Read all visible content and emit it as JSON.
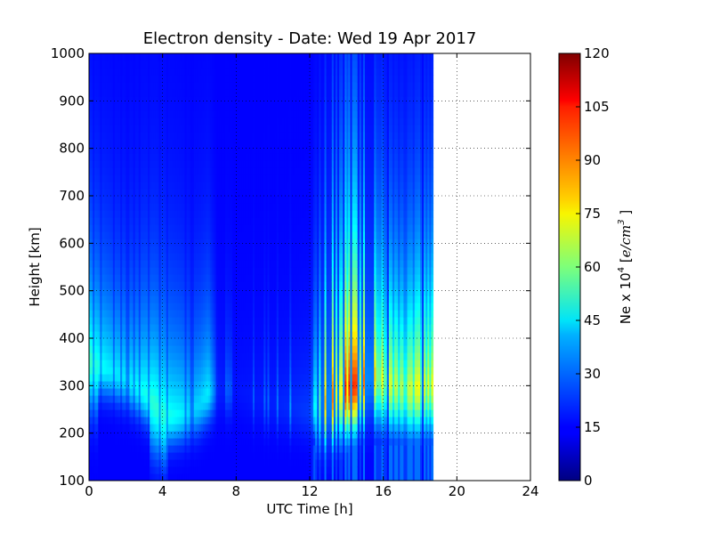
{
  "chart_data": {
    "type": "heatmap",
    "title": "Electron density - Date: Wed 19 Apr 2017",
    "xlabel": "UTC Time [h]",
    "ylabel": "Height [km]",
    "xlim": [
      0,
      24
    ],
    "ylim": [
      100,
      1000
    ],
    "x_ticks": [
      "0",
      "4",
      "8",
      "12",
      "16",
      "20",
      "24"
    ],
    "y_ticks": [
      "100",
      "200",
      "300",
      "400",
      "500",
      "600",
      "700",
      "800",
      "900",
      "1000"
    ],
    "grid": true,
    "data_extent_hours": [
      0,
      18.7
    ],
    "colormap": "jet",
    "colorbar": {
      "label_prefix": "Ne x 10",
      "label_exp": "4",
      "label_unit_open": " [",
      "label_unit": "e/cm",
      "label_unit_exp": "3",
      "label_unit_close": " ]",
      "range": [
        0,
        120
      ],
      "ticks": [
        "0",
        "15",
        "30",
        "45",
        "60",
        "75",
        "90",
        "105",
        "120"
      ]
    },
    "time_profile": [
      {
        "t": 0.0,
        "hmax": 360,
        "peak": 45
      },
      {
        "t": 0.5,
        "hmax": 345,
        "peak": 40
      },
      {
        "t": 1.0,
        "hmax": 340,
        "peak": 35
      },
      {
        "t": 1.5,
        "hmax": 330,
        "peak": 33
      },
      {
        "t": 2.0,
        "hmax": 320,
        "peak": 33
      },
      {
        "t": 2.5,
        "hmax": 305,
        "peak": 35
      },
      {
        "t": 3.0,
        "hmax": 290,
        "peak": 38
      },
      {
        "t": 3.5,
        "hmax": 270,
        "peak": 42
      },
      {
        "t": 4.0,
        "hmax": 245,
        "peak": 42
      },
      {
        "t": 4.5,
        "hmax": 240,
        "peak": 38
      },
      {
        "t": 5.0,
        "hmax": 245,
        "peak": 35
      },
      {
        "t": 5.5,
        "hmax": 250,
        "peak": 30
      },
      {
        "t": 6.0,
        "hmax": 265,
        "peak": 30
      },
      {
        "t": 6.5,
        "hmax": 290,
        "peak": 34
      },
      {
        "t": 7.0,
        "hmax": 300,
        "peak": 8
      },
      {
        "t": 8.0,
        "hmax": 300,
        "peak": 4
      },
      {
        "t": 9.0,
        "hmax": 280,
        "peak": 6
      },
      {
        "t": 10.0,
        "hmax": 270,
        "peak": 7
      },
      {
        "t": 11.0,
        "hmax": 260,
        "peak": 10
      },
      {
        "t": 12.0,
        "hmax": 250,
        "peak": 14
      },
      {
        "t": 12.5,
        "hmax": 270,
        "peak": 58
      },
      {
        "t": 13.0,
        "hmax": 275,
        "peak": 75
      },
      {
        "t": 13.5,
        "hmax": 290,
        "peak": 84
      },
      {
        "t": 14.0,
        "hmax": 300,
        "peak": 92
      },
      {
        "t": 14.5,
        "hmax": 310,
        "peak": 88
      },
      {
        "t": 15.0,
        "hmax": 320,
        "peak": 80
      },
      {
        "t": 15.5,
        "hmax": 330,
        "peak": 70
      },
      {
        "t": 16.0,
        "hmax": 320,
        "peak": 62
      },
      {
        "t": 16.5,
        "hmax": 310,
        "peak": 56
      },
      {
        "t": 17.0,
        "hmax": 305,
        "peak": 52
      },
      {
        "t": 17.5,
        "hmax": 300,
        "peak": 56
      },
      {
        "t": 18.0,
        "hmax": 305,
        "peak": 62
      },
      {
        "t": 18.5,
        "hmax": 310,
        "peak": 60
      }
    ]
  }
}
